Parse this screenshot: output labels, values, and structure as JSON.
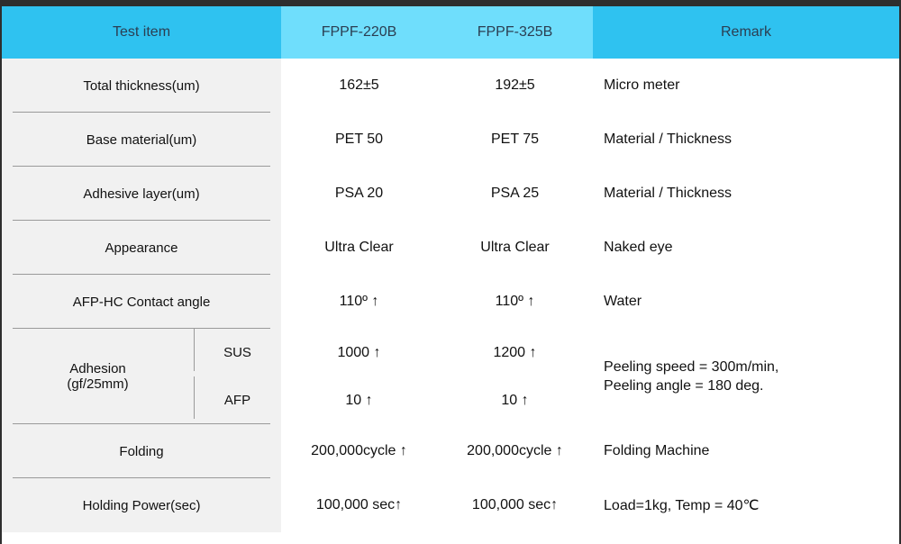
{
  "headers": {
    "test_item": "Test item",
    "product_a": "FPPF-220B",
    "product_b": "FPPF-325B",
    "remark": "Remark"
  },
  "rows": {
    "thickness": {
      "label": "Total thickness(um)",
      "a": "162±5",
      "b": "192±5",
      "remark": "Micro meter"
    },
    "base": {
      "label": "Base material(um)",
      "a": "PET 50",
      "b": "PET 75",
      "remark": "Material / Thickness"
    },
    "adhesive": {
      "label": "Adhesive layer(um)",
      "a": "PSA 20",
      "b": "PSA 25",
      "remark": "Material / Thickness"
    },
    "appearance": {
      "label": "Appearance",
      "a": "Ultra Clear",
      "b": "Ultra Clear",
      "remark": "Naked eye"
    },
    "contact": {
      "label": "AFP-HC Contact angle",
      "a": "110º ↑",
      "b": "110º ↑",
      "remark": "Water"
    },
    "adhesion": {
      "label_line1": "Adhesion",
      "label_line2": "(gf/25mm)",
      "sus": {
        "label": "SUS",
        "a": "1000 ↑",
        "b": "1200 ↑"
      },
      "afp": {
        "label": "AFP",
        "a": "10 ↑",
        "b": "10 ↑"
      },
      "remark_line1": "Peeling speed = 300m/min,",
      "remark_line2": "Peeling angle = 180 deg."
    },
    "folding": {
      "label": "Folding",
      "a": "200,000cycle ↑",
      "b": "200,000cycle ↑",
      "remark": "Folding Machine"
    },
    "holding": {
      "label": "Holding Power(sec)",
      "a": "100,000 sec↑",
      "b": "100,000 sec↑",
      "remark": "Load=1kg, Temp = 40℃"
    }
  }
}
